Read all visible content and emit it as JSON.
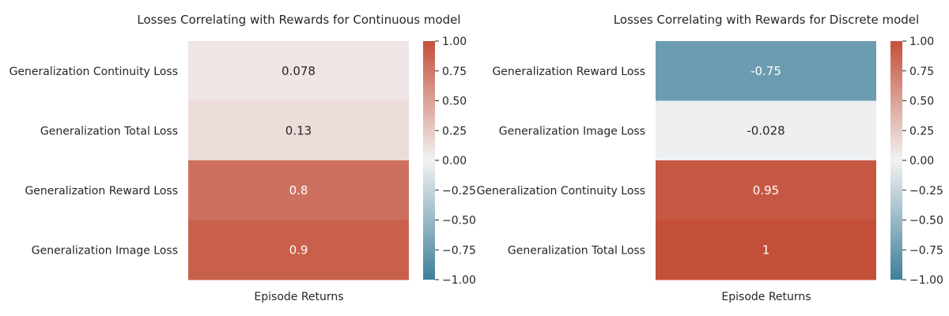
{
  "chart_data": [
    {
      "type": "heatmap",
      "title": "Losses Correlating with Rewards for Continuous model",
      "xlabel": "Episode Returns",
      "ylabel": "",
      "columns": [
        "Episode Returns"
      ],
      "rows": [
        "Generalization Continuity Loss",
        "Generalization Total Loss",
        "Generalization Reward Loss",
        "Generalization Image Loss"
      ],
      "values": [
        0.078,
        0.13,
        0.8,
        0.9
      ],
      "value_labels": [
        "0.078",
        "0.13",
        "0.8",
        "0.9"
      ],
      "colorbar": {
        "range": [
          -1.0,
          1.0
        ],
        "ticks": [
          "1.00",
          "0.75",
          "0.50",
          "0.25",
          "0.00",
          "−0.25",
          "−0.50",
          "−0.75",
          "−1.00"
        ],
        "colors": {
          "low": "#3f7f9a",
          "mid": "#f2f2f2",
          "high": "#c4503a"
        }
      }
    },
    {
      "type": "heatmap",
      "title": "Losses Correlating with Rewards for Discrete model",
      "xlabel": "Episode Returns",
      "ylabel": "",
      "columns": [
        "Episode Returns"
      ],
      "rows": [
        "Generalization Reward Loss",
        "Generalization Image Loss",
        "Generalization Continuity Loss",
        "Generalization Total Loss"
      ],
      "values": [
        -0.75,
        -0.028,
        0.95,
        1.0
      ],
      "value_labels": [
        "-0.75",
        "-0.028",
        "0.95",
        "1"
      ],
      "colorbar": {
        "range": [
          -1.0,
          1.0
        ],
        "ticks": [
          "1.00",
          "0.75",
          "0.50",
          "0.25",
          "0.00",
          "−0.25",
          "−0.50",
          "−0.75",
          "−1.00"
        ],
        "colors": {
          "low": "#3f7f9a",
          "mid": "#f2f2f2",
          "high": "#c4503a"
        }
      }
    }
  ]
}
